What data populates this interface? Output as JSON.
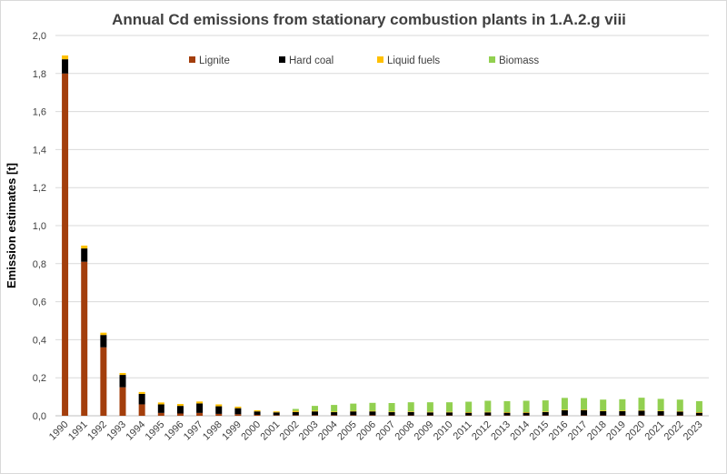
{
  "chart_data": {
    "type": "bar",
    "stacked": true,
    "title": "Annual Cd emissions from stationary combustion plants in 1.A.2.g viii",
    "xlabel": "",
    "ylabel": "Emission estimates [t]",
    "ylim": [
      0,
      2.0
    ],
    "yticks": [
      "0,0",
      "0,2",
      "0,4",
      "0,6",
      "0,8",
      "1,0",
      "1,2",
      "1,4",
      "1,6",
      "1,8",
      "2,0"
    ],
    "grid": true,
    "legend_position": "top",
    "categories": [
      "1990",
      "1991",
      "1992",
      "1993",
      "1994",
      "1995",
      "1996",
      "1997",
      "1998",
      "1999",
      "2000",
      "2001",
      "2002",
      "2003",
      "2004",
      "2005",
      "2006",
      "2007",
      "2008",
      "2009",
      "2010",
      "2011",
      "2012",
      "2013",
      "2014",
      "2015",
      "2016",
      "2017",
      "2018",
      "2019",
      "2020",
      "2021",
      "2022",
      "2023"
    ],
    "series": [
      {
        "name": "Lignite",
        "color": "#a33e0c",
        "values": [
          1.8,
          0.81,
          0.36,
          0.15,
          0.06,
          0.015,
          0.012,
          0.015,
          0.01,
          0.008,
          0.005,
          0.003,
          0.003,
          0.003,
          0.003,
          0.003,
          0.003,
          0.002,
          0.002,
          0.002,
          0.002,
          0.002,
          0.002,
          0.002,
          0.002,
          0.002,
          0.002,
          0.002,
          0.002,
          0.002,
          0.002,
          0.002,
          0.002,
          0.002
        ]
      },
      {
        "name": "Hard coal",
        "color": "#000000",
        "values": [
          0.075,
          0.07,
          0.065,
          0.065,
          0.055,
          0.045,
          0.04,
          0.05,
          0.04,
          0.032,
          0.018,
          0.015,
          0.017,
          0.02,
          0.016,
          0.02,
          0.02,
          0.017,
          0.018,
          0.016,
          0.016,
          0.014,
          0.016,
          0.014,
          0.014,
          0.018,
          0.027,
          0.028,
          0.022,
          0.022,
          0.025,
          0.022,
          0.02,
          0.014
        ]
      },
      {
        "name": "Liquid fuels",
        "color": "#ffc000",
        "values": [
          0.02,
          0.015,
          0.012,
          0.01,
          0.01,
          0.01,
          0.01,
          0.01,
          0.01,
          0.008,
          0.006,
          0.005,
          0.006,
          0.004,
          0.003,
          0.003,
          0.003,
          0.003,
          0.003,
          0.003,
          0.003,
          0.003,
          0.003,
          0.003,
          0.003,
          0.003,
          0.003,
          0.003,
          0.003,
          0.003,
          0.003,
          0.003,
          0.003,
          0.003
        ]
      },
      {
        "name": "Biomass",
        "color": "#92d050",
        "values": [
          0,
          0,
          0,
          0,
          0,
          0,
          0,
          0,
          0,
          0,
          0,
          0,
          0.01,
          0.025,
          0.035,
          0.038,
          0.042,
          0.045,
          0.048,
          0.05,
          0.05,
          0.055,
          0.058,
          0.058,
          0.06,
          0.058,
          0.062,
          0.06,
          0.058,
          0.06,
          0.065,
          0.062,
          0.06,
          0.058
        ]
      }
    ]
  }
}
